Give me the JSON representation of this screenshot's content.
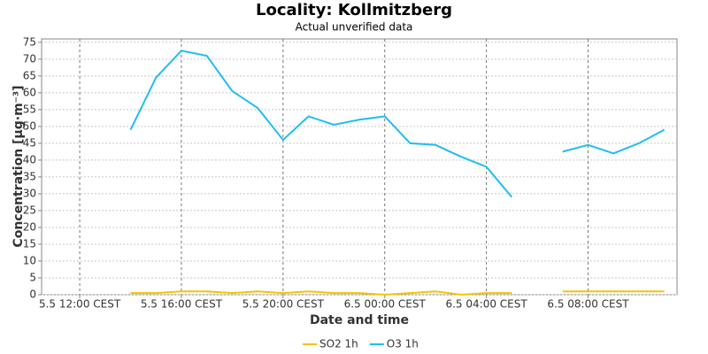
{
  "chart_data": {
    "type": "line",
    "title": "Locality: Kollmitzberg",
    "subtitle": "Actual unverified data",
    "x_label": "Date and time",
    "y_label": "Concentration [µg·m⁻³]",
    "x": [
      14,
      15,
      16,
      17,
      18,
      19,
      20,
      21,
      22,
      23,
      24,
      25,
      26,
      27,
      28,
      29,
      30,
      31,
      32,
      33,
      34,
      35
    ],
    "series": [
      {
        "name": "SO2 1h",
        "color": "#f5c400",
        "values": [
          0.5,
          0.5,
          1,
          1,
          0.5,
          1,
          0.5,
          1,
          0.5,
          0.5,
          0,
          0.5,
          1,
          0,
          0.5,
          0.5,
          null,
          1,
          1,
          1,
          1,
          1
        ]
      },
      {
        "name": "O3 1h",
        "color": "#1ebef0",
        "values": [
          49,
          64.5,
          72.5,
          71,
          60.5,
          55.5,
          46,
          53,
          50.5,
          52,
          53,
          45,
          44.5,
          41,
          38,
          29,
          null,
          42.5,
          44.5,
          42,
          45,
          49
        ]
      }
    ],
    "xlim": [
      10.5,
      35.5
    ],
    "xticks": [
      {
        "value": 12,
        "label": "5.5 12:00 CEST"
      },
      {
        "value": 16,
        "label": "5.5 16:00 CEST"
      },
      {
        "value": 20,
        "label": "5.5 20:00 CEST"
      },
      {
        "value": 24,
        "label": "6.5 00:00 CEST"
      },
      {
        "value": 28,
        "label": "6.5 04:00 CEST"
      },
      {
        "value": 32,
        "label": "6.5 08:00 CEST"
      }
    ],
    "ylim": [
      0,
      76
    ],
    "yticks": [
      0,
      5,
      10,
      15,
      20,
      25,
      30,
      35,
      40,
      45,
      50,
      55,
      60,
      65,
      70,
      75
    ],
    "grid": true,
    "legend": "bottom"
  }
}
